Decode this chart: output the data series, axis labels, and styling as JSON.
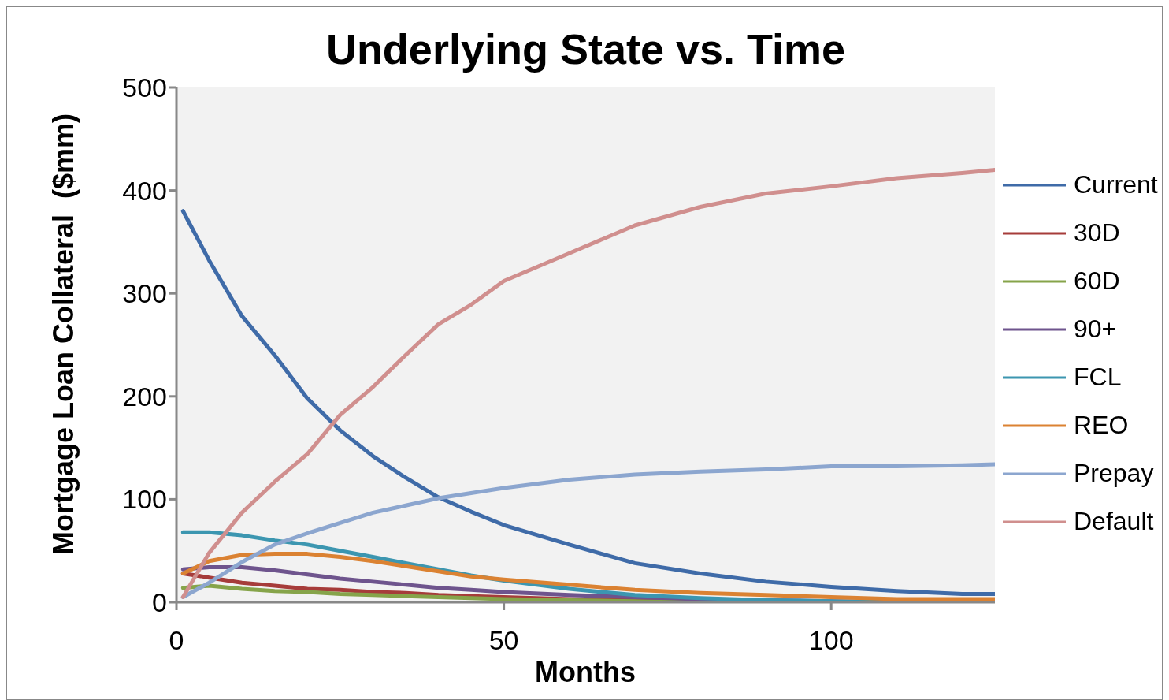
{
  "chart_data": {
    "type": "line",
    "title": "Underlying State vs. Time",
    "xlabel": "Months",
    "ylabel": "Mortgage Loan Collateral  ($mm)",
    "x": [
      1,
      5,
      10,
      15,
      20,
      25,
      30,
      35,
      40,
      45,
      50,
      60,
      70,
      80,
      90,
      100,
      110,
      120,
      125
    ],
    "series": [
      {
        "name": "Current",
        "color": "#3f6ba8",
        "values": [
          380,
          332,
          278,
          240,
          198,
          167,
          142,
          121,
          102,
          88,
          75,
          56,
          38,
          28,
          20,
          15,
          11,
          8,
          8
        ]
      },
      {
        "name": "30D",
        "color": "#a63c3a",
        "values": [
          28,
          24,
          19,
          16,
          13,
          12,
          10,
          9,
          7,
          6,
          5,
          3,
          2,
          1,
          0,
          0,
          0,
          null,
          null
        ]
      },
      {
        "name": "60D",
        "color": "#86a44a",
        "values": [
          14,
          16,
          13,
          11,
          10,
          8,
          7,
          6,
          5,
          4,
          3,
          2,
          1,
          0,
          0,
          0,
          0,
          0,
          0
        ]
      },
      {
        "name": "90+",
        "color": "#6e548d",
        "values": [
          32,
          34,
          34,
          31,
          27,
          23,
          20,
          17,
          14,
          12,
          10,
          7,
          5,
          3,
          2,
          1,
          0,
          null,
          null
        ]
      },
      {
        "name": "FCL",
        "color": "#3c96b0",
        "values": [
          68,
          68,
          65,
          60,
          56,
          50,
          44,
          38,
          32,
          26,
          21,
          13,
          7,
          4,
          2,
          1,
          0,
          0,
          0
        ]
      },
      {
        "name": "REO",
        "color": "#db8232",
        "values": [
          28,
          40,
          46,
          47,
          47,
          44,
          40,
          35,
          30,
          25,
          22,
          17,
          12,
          9,
          7,
          5,
          3,
          3,
          3
        ]
      },
      {
        "name": "Prepay",
        "color": "#8ca6cf",
        "values": [
          5,
          19,
          39,
          56,
          67,
          77,
          87,
          94,
          101,
          106,
          111,
          119,
          124,
          127,
          129,
          132,
          132,
          133,
          134
        ]
      },
      {
        "name": "Default",
        "color": "#d08f8e",
        "values": [
          5,
          48,
          87,
          117,
          144,
          182,
          209,
          240,
          270,
          289,
          312,
          339,
          366,
          384,
          397,
          404,
          412,
          417,
          420
        ]
      }
    ],
    "xlim": [
      0,
      125
    ],
    "xticks": [
      0,
      50,
      100
    ],
    "ylim": [
      0,
      500
    ],
    "yticks": [
      0,
      100,
      200,
      300,
      400,
      500
    ],
    "grid": false,
    "legend": "right",
    "marker": "none",
    "line_style": "solid"
  }
}
